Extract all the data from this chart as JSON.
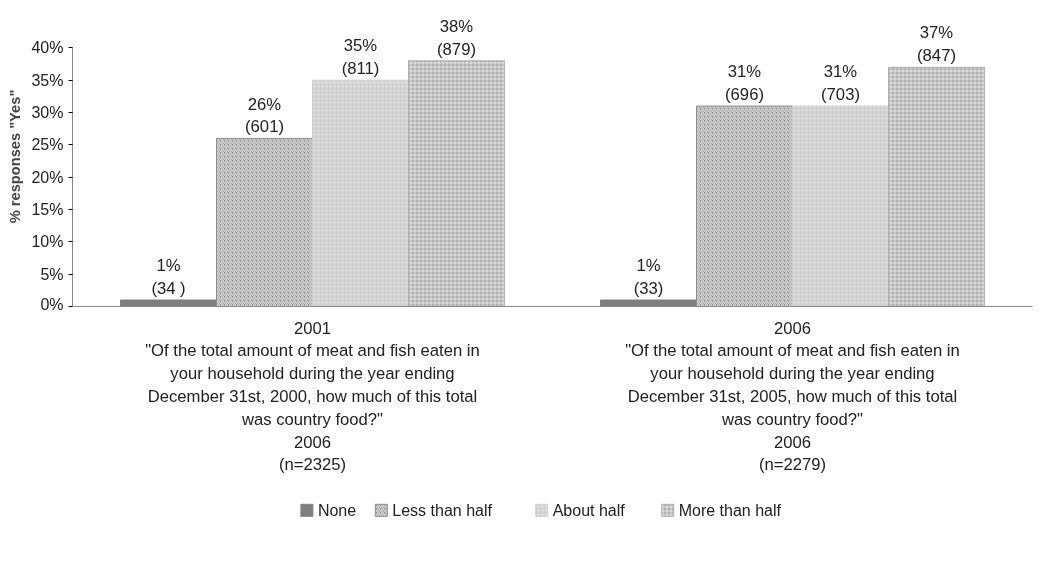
{
  "chart_data": {
    "type": "bar",
    "ylabel": "% responses \"Yes\"",
    "categories": [
      "2001\n\"Of the total amount of meat and fish eaten in\nyour household during the year ending\nDecember 31st, 2000, how much of this total\nwas country food?\"\n2006\n(n=2325)",
      "2006\n\"Of the total amount of meat and fish eaten in\nyour household during the year ending\nDecember 31st, 2005, how much of this total\nwas country food?\"\n2006\n(n=2279)"
    ],
    "series": [
      {
        "name": "None",
        "color": "#7f7f7f",
        "values": [
          1,
          1
        ],
        "value_labels": [
          "1%\n(34 )",
          "1%\n(33)"
        ]
      },
      {
        "name": "Less than half",
        "color": "#8c8c8c",
        "values": [
          26,
          31
        ],
        "value_labels": [
          "26%\n(601)",
          "31%\n(696)"
        ]
      },
      {
        "name": "About half",
        "color": "#d0d0d0",
        "values": [
          35,
          31
        ],
        "value_labels": [
          "35%\n(811)",
          "31%\n(703)"
        ]
      },
      {
        "name": "More than half",
        "color": "#b0b0b0",
        "values": [
          38,
          37
        ],
        "value_labels": [
          "38%\n(879)",
          "37%\n(847)"
        ]
      }
    ],
    "ylim": [
      0,
      40
    ],
    "yticks": [
      {
        "value": 0,
        "label": "0%"
      },
      {
        "value": 5,
        "label": "5%"
      },
      {
        "value": 10,
        "label": "10%"
      },
      {
        "value": 15,
        "label": "15%"
      },
      {
        "value": 20,
        "label": "20%"
      },
      {
        "value": 25,
        "label": "25%"
      },
      {
        "value": 30,
        "label": "30%"
      },
      {
        "value": 35,
        "label": "35%"
      },
      {
        "value": 40,
        "label": "40%"
      }
    ],
    "legend": "bottom"
  }
}
